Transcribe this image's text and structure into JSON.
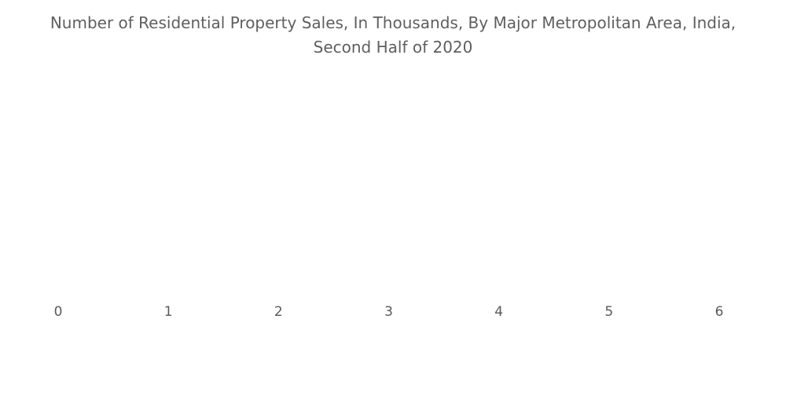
{
  "chart_data": {
    "type": "bar",
    "title_lines": [
      "Number of Residential Property Sales, In Thousands, By Major Metropolitan Area, India,",
      "Second Half of 2020"
    ],
    "categories": [],
    "series": [],
    "x_ticks": [
      "0",
      "1",
      "2",
      "3",
      "4",
      "5",
      "6"
    ],
    "xlim": [
      0,
      6
    ],
    "grid": false,
    "colors": {
      "title": "#5f5f5f",
      "tick_label": "#595959"
    }
  }
}
